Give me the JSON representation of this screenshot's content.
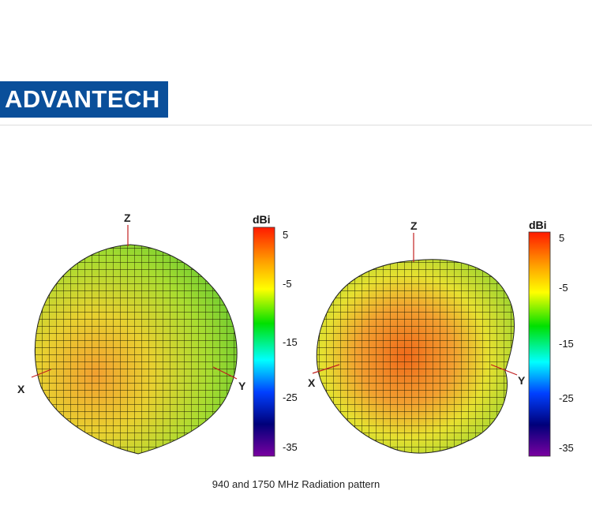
{
  "logo": {
    "text": "ADVANTECH",
    "color": "#0a4f9a"
  },
  "caption": "940 and 1750 MHz Radiation pattern",
  "plots": [
    {
      "frequency_mhz": 940,
      "axes": {
        "x": "X",
        "y": "Y",
        "z": "Z"
      }
    },
    {
      "frequency_mhz": 1750,
      "axes": {
        "x": "X",
        "y": "Y",
        "z": "Z"
      }
    }
  ],
  "colorbar": {
    "unit": "dBi",
    "ticks": [
      "5",
      "-5",
      "-15",
      "-25",
      "-35"
    ],
    "range": [
      -35,
      5
    ],
    "colormap": [
      "#ff1a00",
      "#ffa000",
      "#ffff00",
      "#00e000",
      "#00ffff",
      "#0040ff",
      "#00007a",
      "#7a00a0"
    ]
  }
}
